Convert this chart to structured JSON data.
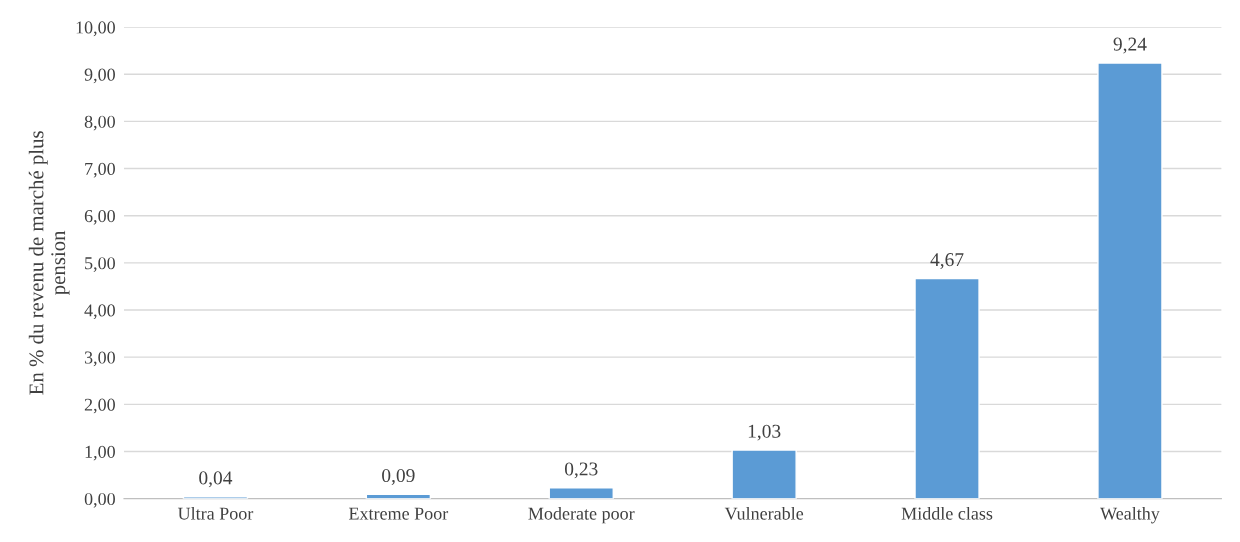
{
  "chart_data": {
    "type": "bar",
    "categories": [
      "Ultra Poor",
      "Extreme Poor",
      "Moderate poor",
      "Vulnerable",
      "Middle class",
      "Wealthy"
    ],
    "values": [
      0.04,
      0.09,
      0.23,
      1.03,
      4.67,
      9.24
    ],
    "value_labels": [
      "0,04",
      "0,09",
      "0,23",
      "1,03",
      "4,67",
      "9,24"
    ],
    "color": "#5b9bd5",
    "ylabel": "En % du revenu de marché plus\npension",
    "ylim": [
      0,
      10
    ],
    "yticks": [
      {
        "value": 0,
        "label": "0,00"
      },
      {
        "value": 1,
        "label": "1,00"
      },
      {
        "value": 2,
        "label": "2,00"
      },
      {
        "value": 3,
        "label": "3,00"
      },
      {
        "value": 4,
        "label": "4,00"
      },
      {
        "value": 5,
        "label": "5,00"
      },
      {
        "value": 6,
        "label": "6,00"
      },
      {
        "value": 7,
        "label": "7,00"
      },
      {
        "value": 8,
        "label": "8,00"
      },
      {
        "value": 9,
        "label": "9,00"
      },
      {
        "value": 10,
        "label": "10,00"
      }
    ],
    "grid": "y"
  }
}
